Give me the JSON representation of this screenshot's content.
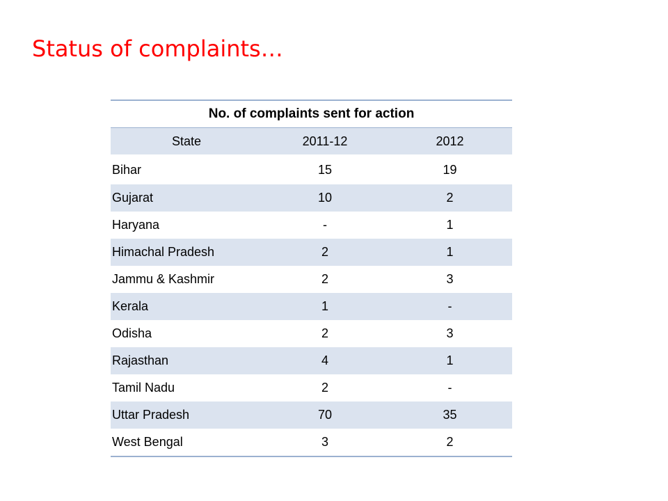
{
  "slide": {
    "title": "Status of complaints…"
  },
  "table": {
    "caption": "No. of complaints sent for action",
    "columns": [
      "State",
      "2011-12",
      "2012"
    ],
    "rows": [
      {
        "state": "Bihar",
        "y2011_12": "15",
        "y2012": "19"
      },
      {
        "state": "Gujarat",
        "y2011_12": "10",
        "y2012": "2"
      },
      {
        "state": "Haryana",
        "y2011_12": "-",
        "y2012": "1"
      },
      {
        "state": "Himachal Pradesh",
        "y2011_12": "2",
        "y2012": "1"
      },
      {
        "state": "Jammu & Kashmir",
        "y2011_12": "2",
        "y2012": "3"
      },
      {
        "state": "Kerala",
        "y2011_12": "1",
        "y2012": "-"
      },
      {
        "state": "Odisha",
        "y2011_12": "2",
        "y2012": "3"
      },
      {
        "state": "Rajasthan",
        "y2011_12": "4",
        "y2012": "1"
      },
      {
        "state": "Tamil Nadu",
        "y2011_12": "2",
        "y2012": "-"
      },
      {
        "state": "Uttar Pradesh",
        "y2011_12": "70",
        "y2012": "35"
      },
      {
        "state": "West Bengal",
        "y2011_12": "3",
        "y2012": "2"
      }
    ]
  },
  "colors": {
    "title": "#ff0000",
    "band": "#dbe3ef",
    "rule": "#9bb1d0"
  }
}
